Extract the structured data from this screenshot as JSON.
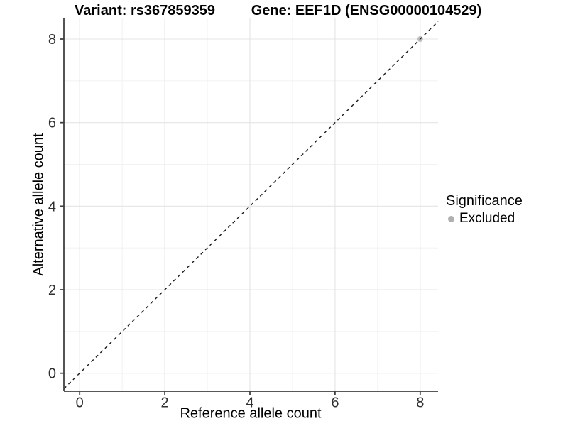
{
  "chart_data": {
    "type": "scatter",
    "title_left": "Variant: rs367859359",
    "title_right": "Gene: EEF1D (ENSG00000104529)",
    "xlabel": "Reference allele count",
    "ylabel": "Alternative allele count",
    "xlim": [
      -0.37,
      8.42
    ],
    "ylim": [
      -0.43,
      8.51
    ],
    "xticks": [
      0,
      2,
      4,
      6,
      8
    ],
    "yticks": [
      0,
      2,
      4,
      6,
      8
    ],
    "xminor": [
      1,
      3,
      5,
      7
    ],
    "yminor": [
      1,
      3,
      5,
      7
    ],
    "grid": "major+minor",
    "points": [
      {
        "x": 8,
        "y": 8,
        "significance": "Excluded",
        "color": "#bfbfbf"
      }
    ],
    "reference_line": {
      "equation": "y = x",
      "style": "dashed",
      "color": "#1a1a1a"
    },
    "legend": {
      "title": "Significance",
      "position": "right",
      "items": [
        {
          "label": "Excluded",
          "color": "#b0b0b0"
        }
      ]
    },
    "colors": {
      "panel_background": "#ffffff",
      "grid_major": "#e4e4e4",
      "grid_minor": "#f0f0f0",
      "axis_line": "#404040",
      "tick_text": "#303030",
      "title_text": "#000000"
    }
  }
}
